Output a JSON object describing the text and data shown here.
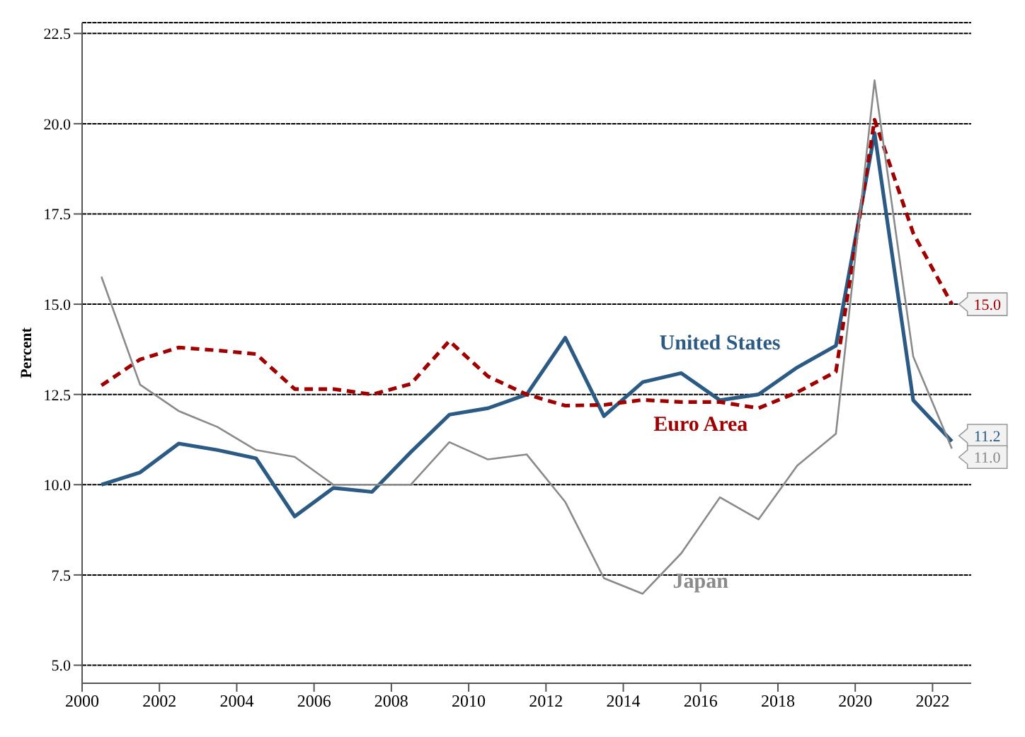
{
  "chart_data": {
    "type": "line",
    "ylabel": "Percent",
    "x": [
      2000.5,
      2001.5,
      2002.5,
      2003.5,
      2004.5,
      2005.5,
      2006.5,
      2007.5,
      2008.5,
      2009.5,
      2010.5,
      2011.5,
      2012.5,
      2013.5,
      2014.5,
      2015.5,
      2016.5,
      2017.5,
      2018.5,
      2019.5,
      2020.5,
      2021.5,
      2022.5
    ],
    "xlim": [
      2000,
      2023
    ],
    "xticks": [
      2000,
      2002,
      2004,
      2006,
      2008,
      2010,
      2012,
      2014,
      2016,
      2018,
      2020,
      2022
    ],
    "ylim": [
      4.5,
      22.8
    ],
    "yticks": [
      {
        "value": 5,
        "label": "5.0"
      },
      {
        "value": 7.5,
        "label": "7.5"
      },
      {
        "value": 10,
        "label": "10.0"
      },
      {
        "value": 12.5,
        "label": "12.5"
      },
      {
        "value": 15,
        "label": "15.0"
      },
      {
        "value": 17.5,
        "label": "17.5"
      },
      {
        "value": 20,
        "label": "20.0"
      },
      {
        "value": 22.5,
        "label": "22.5"
      }
    ],
    "grid": "y",
    "legend": false,
    "marker": "none",
    "series": [
      {
        "name": "United States",
        "color": "#2b5a84",
        "line_style": "solid",
        "values": [
          10.0,
          10.34,
          11.14,
          10.96,
          10.73,
          9.12,
          9.91,
          9.8,
          10.9,
          11.94,
          12.12,
          12.5,
          14.07,
          11.9,
          12.84,
          13.09,
          12.34,
          12.5,
          13.25,
          13.85,
          19.74,
          12.34,
          11.2
        ],
        "value_labels": [
          null,
          null,
          null,
          null,
          null,
          null,
          null,
          null,
          null,
          null,
          null,
          null,
          null,
          null,
          null,
          null,
          null,
          null,
          null,
          null,
          null,
          null,
          "11.2"
        ]
      },
      {
        "name": "Euro Area",
        "color": "#a00000",
        "line_style": "dashed",
        "values": [
          12.75,
          13.47,
          13.8,
          13.72,
          13.62,
          12.65,
          12.65,
          12.5,
          12.79,
          13.98,
          13.0,
          12.5,
          12.19,
          12.21,
          12.35,
          12.29,
          12.29,
          12.12,
          12.56,
          13.13,
          20.11,
          16.97,
          15.0
        ],
        "value_labels": [
          null,
          null,
          null,
          null,
          null,
          null,
          null,
          null,
          null,
          null,
          null,
          null,
          null,
          null,
          null,
          null,
          null,
          null,
          null,
          null,
          null,
          null,
          "15.0"
        ]
      },
      {
        "name": "Japan",
        "color": "#8a8a8a",
        "line_style": "solid",
        "values": [
          15.76,
          12.77,
          12.04,
          11.6,
          10.96,
          10.77,
          10.0,
          10.0,
          10.0,
          11.18,
          10.7,
          10.84,
          9.52,
          7.41,
          6.98,
          8.1,
          9.65,
          9.04,
          10.53,
          11.41,
          21.2,
          13.55,
          11.0
        ],
        "value_labels": [
          null,
          null,
          null,
          null,
          null,
          null,
          null,
          null,
          null,
          null,
          null,
          null,
          null,
          null,
          null,
          null,
          null,
          null,
          null,
          null,
          null,
          null,
          "11.0"
        ]
      }
    ]
  }
}
